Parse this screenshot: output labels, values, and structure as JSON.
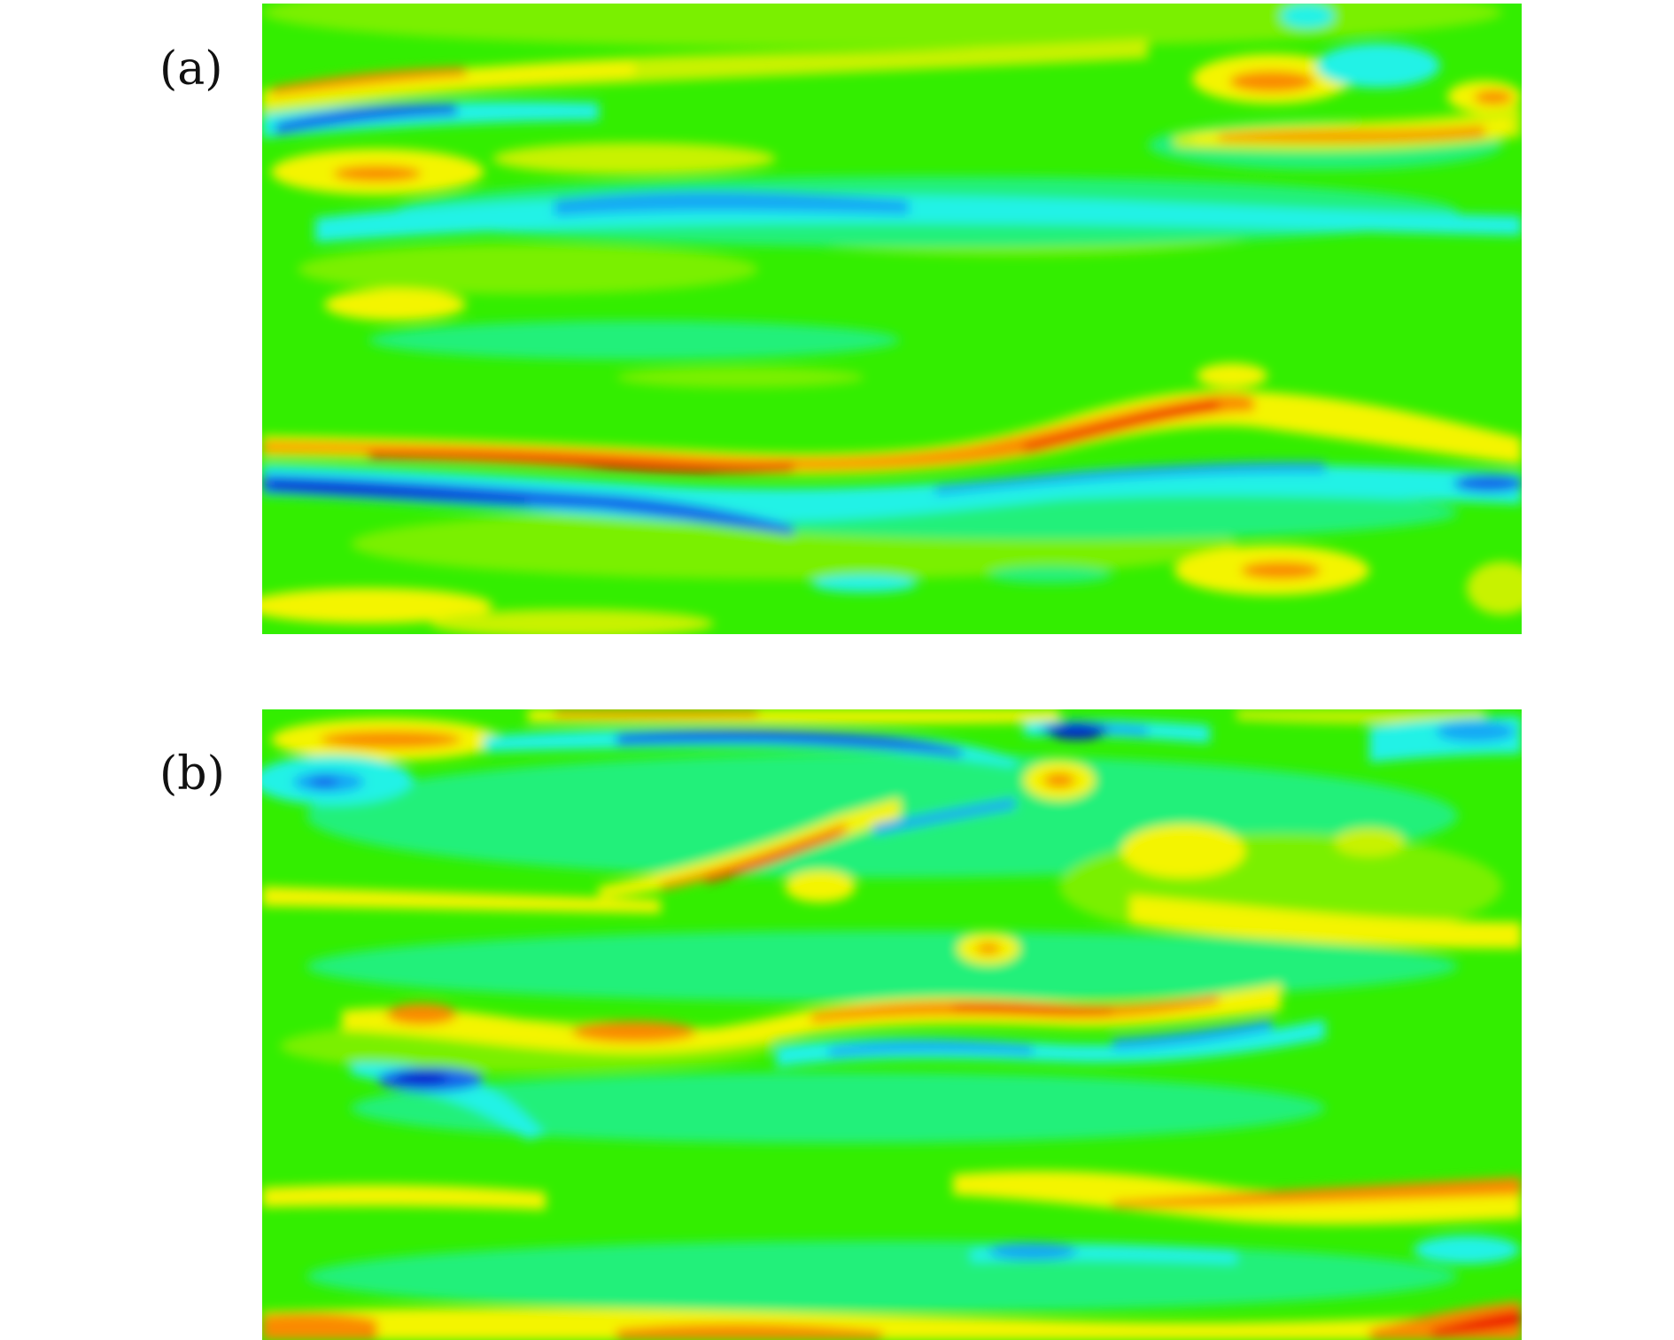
{
  "figure": {
    "panels": [
      {
        "label": "(a)"
      },
      {
        "label": "(b)"
      }
    ],
    "colormap": {
      "background_green": "#33ee00",
      "light_green": "#7af000",
      "aqua_green": "#22f07a",
      "cyan": "#22f2e6",
      "sky_blue": "#16a8f5",
      "blue": "#1466ea",
      "deep_blue": "#0022cc",
      "yellow": "#f4f400",
      "light_yellow": "#c8f200",
      "orange": "#fa8a00",
      "red": "#ee1500",
      "dark_red": "#c80000"
    }
  }
}
